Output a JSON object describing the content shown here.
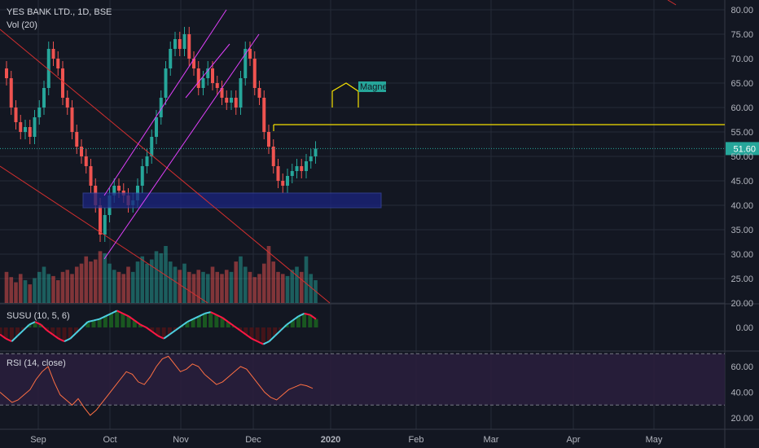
{
  "header": {
    "symbol": "YES BANK LTD., 1D, BSE",
    "vol_label": "Vol (20)"
  },
  "colors": {
    "bg": "#131722",
    "grid": "#262b38",
    "up": "#26a69a",
    "down": "#ef5350",
    "channel": "#e040fb",
    "trendline": "#d32f2f",
    "resistance": "#f5e000",
    "zone": "#1a237e",
    "rsi_band": "#2a1f3d",
    "text": "#b2b5be"
  },
  "chart_data": [
    {
      "type": "candlestick",
      "title": "YES BANK LTD., 1D, BSE",
      "x_labels": [
        "Sep",
        "Oct",
        "Nov",
        "Dec",
        "2020",
        "Feb",
        "Mar",
        "Apr",
        "May"
      ],
      "y_ticks": [
        "80.00",
        "75.00",
        "70.00",
        "65.00",
        "60.00",
        "55.00",
        "50.00",
        "45.00",
        "40.00",
        "35.00",
        "30.00",
        "25.00",
        "20.00"
      ],
      "ylim": [
        20,
        80
      ],
      "last_price": "51.60",
      "close": [
        66,
        60,
        57,
        55,
        56,
        54,
        58,
        60,
        64,
        72,
        70,
        68,
        62,
        60,
        55,
        52,
        50,
        48,
        44,
        40,
        34,
        38,
        42,
        44,
        43,
        42,
        40,
        41,
        44,
        48,
        50,
        54,
        58,
        62,
        68,
        72,
        74,
        72,
        75,
        70,
        68,
        64,
        66,
        68,
        65,
        64,
        62,
        61,
        62,
        60,
        66,
        72,
        70,
        64,
        62,
        55,
        52,
        48,
        45,
        44,
        46,
        47,
        48,
        47,
        49,
        50,
        51.6
      ],
      "volume": [
        30,
        25,
        20,
        28,
        22,
        18,
        24,
        30,
        35,
        28,
        26,
        22,
        30,
        32,
        28,
        35,
        38,
        45,
        40,
        42,
        50,
        48,
        38,
        32,
        30,
        28,
        35,
        30,
        40,
        45,
        38,
        42,
        50,
        48,
        55,
        40,
        35,
        32,
        38,
        30,
        28,
        32,
        30,
        28,
        35,
        30,
        28,
        32,
        30,
        40,
        45,
        35,
        30,
        25,
        28,
        38,
        55,
        40,
        30,
        28,
        26,
        32,
        35,
        30,
        45,
        28,
        22
      ],
      "annotations": [
        {
          "type": "label",
          "text": "Magnet"
        },
        {
          "type": "hline",
          "price": 56.5
        },
        {
          "type": "zone",
          "low": 39.5,
          "high": 42.5
        }
      ]
    },
    {
      "type": "line",
      "title": "SUSU (10, 5, 6)",
      "y_ticks": [
        "0.00"
      ],
      "values": [
        -0.5,
        -0.8,
        -1,
        -0.6,
        -0.2,
        0.2,
        0.4,
        0.2,
        -0.2,
        -0.5,
        -0.8,
        -1,
        -0.8,
        -0.4,
        0,
        0.4,
        0.5,
        0.6,
        0.8,
        1,
        1.2,
        1,
        0.8,
        0.5,
        0.2,
        0,
        -0.3,
        -0.6,
        -0.8,
        -0.5,
        -0.2,
        0.1,
        0.4,
        0.6,
        0.8,
        1,
        1.1,
        0.9,
        0.7,
        0.4,
        0.1,
        -0.2,
        -0.5,
        -0.8,
        -1,
        -1.2,
        -1,
        -0.6,
        -0.2,
        0.2,
        0.5,
        0.8,
        1,
        0.9,
        0.6
      ]
    },
    {
      "type": "line",
      "title": "RSI (14, close)",
      "y_ticks": [
        "60.00",
        "40.00",
        "20.00"
      ],
      "ylim": [
        20,
        70
      ],
      "band": [
        30,
        70
      ],
      "values": [
        40,
        36,
        32,
        34,
        38,
        42,
        50,
        56,
        60,
        48,
        38,
        34,
        30,
        35,
        28,
        22,
        26,
        32,
        38,
        44,
        50,
        56,
        54,
        48,
        46,
        52,
        60,
        66,
        68,
        62,
        56,
        58,
        62,
        60,
        54,
        50,
        46,
        48,
        52,
        56,
        60,
        58,
        52,
        46,
        40,
        36,
        34,
        38,
        42,
        44,
        46,
        45,
        43
      ]
    }
  ]
}
